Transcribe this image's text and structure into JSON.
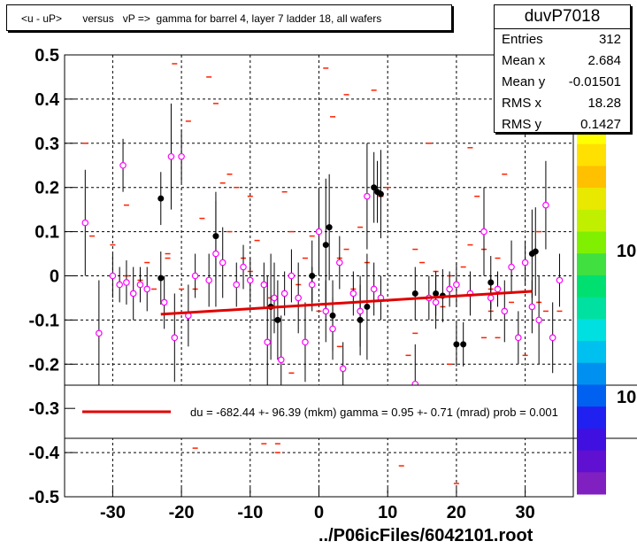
{
  "title": "<u - uP>       versus   vP =>  gamma for barrel 4, layer 7 ladder 18, all wafers",
  "stats": {
    "name": "duvP7018",
    "rows": [
      {
        "label": "Entries",
        "value": "312"
      },
      {
        "label": "Mean x",
        "value": "2.684"
      },
      {
        "label": "Mean y",
        "value": "-0.01501"
      },
      {
        "label": "RMS x",
        "value": "18.28"
      },
      {
        "label": "RMS y",
        "value": "0.1427"
      }
    ]
  },
  "footer": "../P06icFiles/6042101.root",
  "colorbar": {
    "labels": [
      "10",
      "10"
    ]
  },
  "legend_text": "du = -682.44 +- 96.39 (mkm) gamma =    0.95 +-  0.71 (mrad) prob = 0.001",
  "colors": {
    "fit": "#e00000",
    "open": "#ff00ff",
    "filled": "#000000",
    "profile": "#ff2000"
  },
  "chart_data": {
    "type": "scatter",
    "xlim": [
      -37,
      37
    ],
    "ylim": [
      -0.5,
      0.5
    ],
    "x_ticks": [
      -30,
      -20,
      -10,
      0,
      10,
      20,
      30
    ],
    "y_ticks": [
      -0.5,
      -0.4,
      -0.3,
      -0.2,
      -0.1,
      0,
      0.1,
      0.2,
      0.3,
      0.4,
      0.5
    ],
    "x_tick_labels": [
      "-30",
      "-20",
      "-10",
      "0",
      "10",
      "20",
      "30"
    ],
    "y_tick_labels": [
      "-0.5",
      "-0.4",
      "-0.3",
      "-0.2",
      "-0.1",
      "0",
      "0.1",
      "0.2",
      "0.3",
      "0.4",
      "0.5"
    ],
    "grid": true,
    "fit_line": {
      "x": [
        -23,
        31
      ],
      "y": [
        -0.087,
        -0.035
      ]
    },
    "open_points": [
      [
        -34,
        0.12,
        0.12
      ],
      [
        -32,
        -0.13,
        0.12
      ],
      [
        -30,
        0.0,
        0.05
      ],
      [
        -29,
        -0.02,
        0.04
      ],
      [
        -28.5,
        0.25,
        0.06
      ],
      [
        -28,
        -0.015,
        0.05
      ],
      [
        -27,
        -0.04,
        0.06
      ],
      [
        -26,
        -0.02,
        0.04
      ],
      [
        -25,
        -0.03,
        0.05
      ],
      [
        -22.5,
        -0.06,
        0.06
      ],
      [
        -21.5,
        0.27,
        0.12
      ],
      [
        -21,
        -0.14,
        0.1
      ],
      [
        -20,
        0.27,
        0.06
      ],
      [
        -19,
        -0.09,
        0.07
      ],
      [
        -18,
        0.0,
        0.05
      ],
      [
        -16,
        -0.01,
        0.06
      ],
      [
        -15,
        0.05,
        0.12
      ],
      [
        -14,
        0.03,
        0.08
      ],
      [
        -12,
        -0.02,
        0.05
      ],
      [
        -11,
        0.02,
        0.05
      ],
      [
        -10,
        -0.01,
        0.05
      ],
      [
        -8,
        -0.02,
        0.05
      ],
      [
        -7.5,
        -0.15,
        0.15
      ],
      [
        -6.5,
        -0.05,
        0.08
      ],
      [
        -5.5,
        -0.19,
        0.1
      ],
      [
        -5,
        -0.04,
        0.05
      ],
      [
        -4,
        0.0,
        0.06
      ],
      [
        -3,
        -0.05,
        0.08
      ],
      [
        -2,
        -0.15,
        0.09
      ],
      [
        -1,
        -0.02,
        0.04
      ],
      [
        0,
        0.1,
        0.1
      ],
      [
        1,
        -0.08,
        0.07
      ],
      [
        2,
        -0.12,
        0.07
      ],
      [
        3,
        0.03,
        0.06
      ],
      [
        3.5,
        -0.21,
        0.06
      ],
      [
        5,
        -0.04,
        0.05
      ],
      [
        6,
        -0.08,
        0.08
      ],
      [
        7,
        0.18,
        0.12
      ],
      [
        8,
        -0.03,
        0.06
      ],
      [
        9,
        -0.05,
        0.05
      ],
      [
        14,
        -0.245,
        0.09
      ],
      [
        16,
        -0.05,
        0.05
      ],
      [
        17,
        -0.06,
        0.06
      ],
      [
        19,
        -0.03,
        0.04
      ],
      [
        20,
        -0.02,
        0.05
      ],
      [
        22,
        -0.04,
        0.05
      ],
      [
        24,
        0.1,
        0.1
      ],
      [
        25,
        -0.05,
        0.05
      ],
      [
        26,
        -0.03,
        0.04
      ],
      [
        27,
        -0.08,
        0.07
      ],
      [
        28,
        0.02,
        0.06
      ],
      [
        29,
        -0.14,
        0.06
      ],
      [
        30,
        0.03,
        0.05
      ],
      [
        31,
        -0.07,
        0.06
      ],
      [
        32,
        -0.1,
        0.1
      ],
      [
        33,
        0.16,
        0.1
      ],
      [
        34,
        -0.14,
        0.08
      ],
      [
        35,
        -0.01,
        0.06
      ]
    ],
    "filled_points": [
      [
        -23,
        -0.005,
        0.06
      ],
      [
        -23,
        0.175,
        0.06
      ],
      [
        -15,
        0.09,
        0.1
      ],
      [
        -7,
        -0.07,
        0.12
      ],
      [
        -6,
        -0.1,
        0.09
      ],
      [
        -1,
        0.0,
        0.08
      ],
      [
        1,
        0.07,
        0.15
      ],
      [
        1.5,
        0.11,
        0.12
      ],
      [
        2,
        -0.09,
        0.08
      ],
      [
        6,
        -0.1,
        0.08
      ],
      [
        7,
        -0.07,
        0.12
      ],
      [
        8,
        0.2,
        0.08
      ],
      [
        8.5,
        0.19,
        0.07
      ],
      [
        9,
        0.185,
        0.1
      ],
      [
        14,
        -0.04,
        0.06
      ],
      [
        17,
        -0.04,
        0.05
      ],
      [
        18,
        -0.045,
        0.06
      ],
      [
        20,
        -0.155,
        0.05
      ],
      [
        21,
        -0.155,
        0.05
      ],
      [
        25,
        -0.015,
        0.06
      ],
      [
        31,
        0.05,
        0.1
      ],
      [
        31.5,
        0.055,
        0.1
      ]
    ],
    "profile_marks": [
      [
        -34,
        0.3
      ],
      [
        -33,
        0.09
      ],
      [
        -32,
        -0.27
      ],
      [
        -30,
        0.07
      ],
      [
        -28,
        0.0
      ],
      [
        -26,
        -0.01
      ],
      [
        -25,
        0.03
      ],
      [
        -24,
        -0.03
      ],
      [
        -22,
        0.05
      ],
      [
        -22,
        0.04
      ],
      [
        -21,
        0.48
      ],
      [
        -20,
        -0.03
      ],
      [
        -19,
        0.35
      ],
      [
        -18,
        -0.03
      ],
      [
        -17,
        0.13
      ],
      [
        -16,
        0.45
      ],
      [
        -15,
        0.39
      ],
      [
        -14,
        0.21
      ],
      [
        -13,
        0.23
      ],
      [
        -13,
        0.1
      ],
      [
        -12,
        0.2
      ],
      [
        -11,
        0.04
      ],
      [
        -10,
        0.18
      ],
      [
        -10,
        0.01
      ],
      [
        -9,
        0.08
      ],
      [
        -8,
        -0.38
      ],
      [
        -7,
        -0.3
      ],
      [
        -7,
        -0.05
      ],
      [
        -6,
        -0.38
      ],
      [
        -6,
        -0.4
      ],
      [
        -5,
        0.19
      ],
      [
        -4,
        0.1
      ],
      [
        -4,
        -0.22
      ],
      [
        -3,
        -0.02
      ],
      [
        -2,
        0.04
      ],
      [
        -1,
        0.09
      ],
      [
        0,
        -0.08
      ],
      [
        1,
        -0.33
      ],
      [
        1,
        0.47
      ],
      [
        2,
        0.36
      ],
      [
        3,
        0.04
      ],
      [
        3,
        -0.16
      ],
      [
        4,
        0.41
      ],
      [
        4,
        0.06
      ],
      [
        5,
        -0.03
      ],
      [
        6,
        -0.1
      ],
      [
        6,
        0.11
      ],
      [
        7,
        0.03
      ],
      [
        8,
        0.42
      ],
      [
        9,
        0.18
      ],
      [
        10,
        0.2
      ],
      [
        12,
        -0.43
      ],
      [
        13,
        -0.18
      ],
      [
        14,
        0.06
      ],
      [
        14,
        -0.13
      ],
      [
        15,
        0.03
      ],
      [
        16,
        0.3
      ],
      [
        17,
        0.01
      ],
      [
        18,
        -0.07
      ],
      [
        19,
        0.0
      ],
      [
        19,
        -0.2
      ],
      [
        20,
        -0.02
      ],
      [
        21,
        0.02
      ],
      [
        22,
        0.07
      ],
      [
        23,
        0.18
      ],
      [
        24,
        0.06
      ],
      [
        25,
        -0.03
      ],
      [
        25,
        -0.08
      ],
      [
        26,
        0.04
      ],
      [
        26,
        -0.14
      ],
      [
        27,
        0.23
      ],
      [
        28,
        -0.06
      ],
      [
        29,
        -0.3
      ],
      [
        30,
        -0.18
      ],
      [
        31,
        0.05
      ],
      [
        32,
        0.1
      ],
      [
        32,
        -0.06
      ],
      [
        33,
        -0.08
      ],
      [
        34,
        -0.33
      ],
      [
        35,
        -0.08
      ],
      [
        20,
        -0.47
      ],
      [
        22,
        0.29
      ],
      [
        24,
        -0.14
      ],
      [
        -28,
        0.16
      ],
      [
        -18,
        -0.39
      ]
    ]
  }
}
